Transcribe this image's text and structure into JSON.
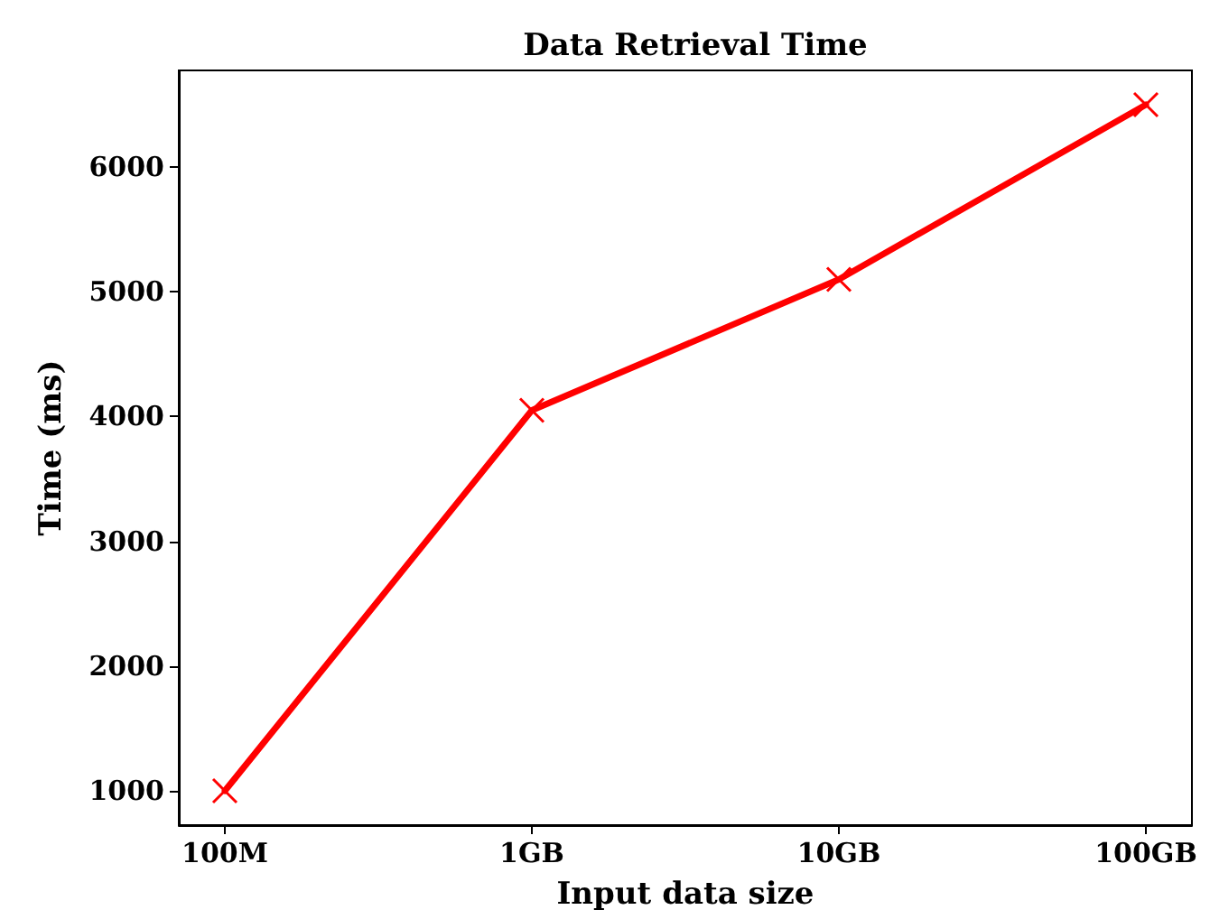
{
  "chart_data": {
    "type": "line",
    "title": "Data Retrieval Time",
    "xlabel": "Input data size",
    "ylabel": "Time (ms)",
    "categories": [
      "100M",
      "1GB",
      "10GB",
      "100GB"
    ],
    "series": [
      {
        "color": "#ff0000",
        "values": [
          1000,
          4050,
          5100,
          6500
        ]
      }
    ],
    "ylim": [
      725,
      6775
    ],
    "yticks": [
      1000,
      2000,
      3000,
      4000,
      5000,
      6000
    ],
    "marker": "cross",
    "line_style": "solid",
    "grid": false
  }
}
